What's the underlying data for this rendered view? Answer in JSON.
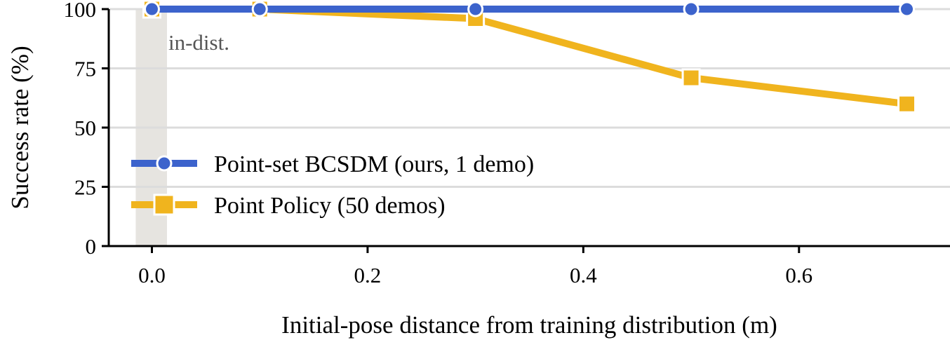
{
  "chart_data": {
    "type": "line",
    "title": "",
    "xlabel": "Initial-pose distance from training distribution (m)",
    "ylabel": "Success rate (%)",
    "xlim": [
      -0.04,
      0.74
    ],
    "ylim": [
      0,
      100
    ],
    "x_ticks": [
      0.0,
      0.2,
      0.4,
      0.6
    ],
    "x_tick_labels": [
      "0.0",
      "0.2",
      "0.4",
      "0.6"
    ],
    "y_ticks": [
      0,
      25,
      50,
      75,
      100
    ],
    "y_tick_labels": [
      "0",
      "25",
      "50",
      "75",
      "100"
    ],
    "grid": "horizontal",
    "legend_position": "left",
    "in_dist_band": {
      "x_start": -0.015,
      "x_end": 0.014,
      "label": "in-dist."
    },
    "series": [
      {
        "name": "Point-set BCSDM (ours, 1 demo)",
        "color": "#3c63cc",
        "marker": "circle",
        "x": [
          0.0,
          0.1,
          0.3,
          0.5,
          0.7
        ],
        "values": [
          100,
          100,
          100,
          100,
          100
        ]
      },
      {
        "name": "Point Policy (50 demos)",
        "color": "#f0b41e",
        "marker": "square",
        "x": [
          0.0,
          0.1,
          0.3,
          0.5,
          0.7
        ],
        "values": [
          100,
          100,
          96,
          71,
          60
        ]
      }
    ]
  }
}
